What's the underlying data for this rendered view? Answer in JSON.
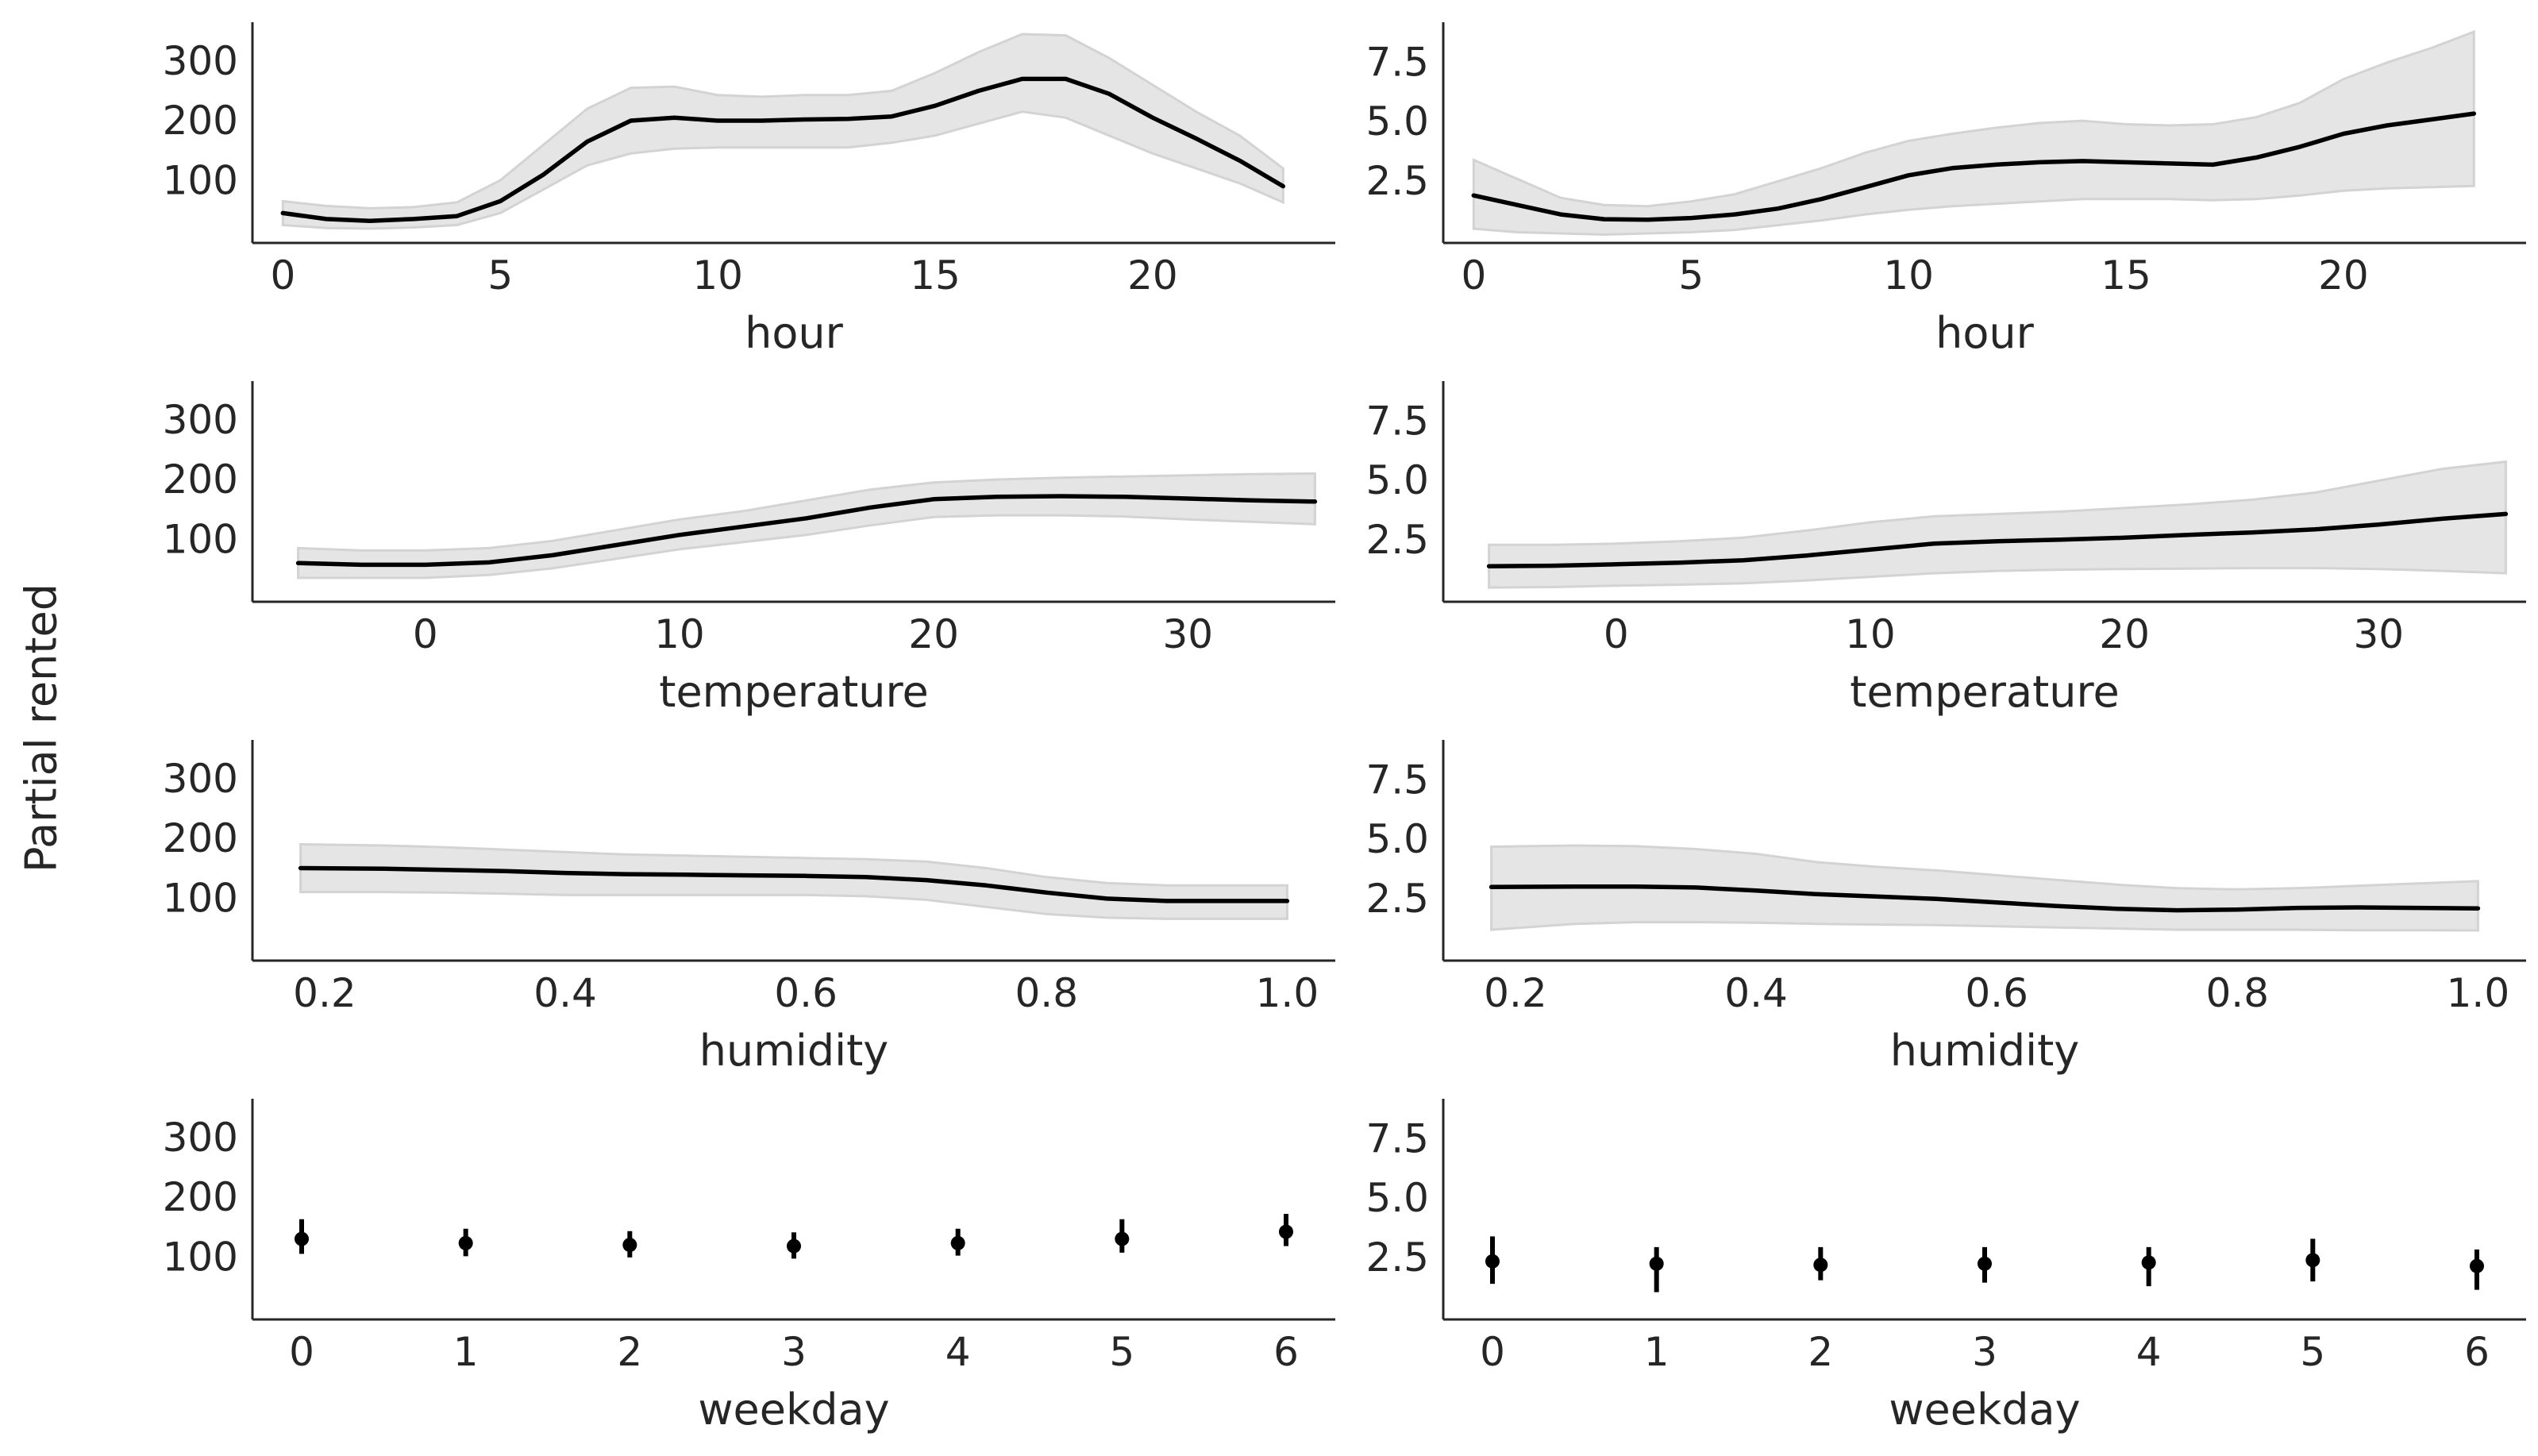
{
  "figure": {
    "ylabel": "Partial rented",
    "band_color": "#e5e5e5",
    "band_edge_color": "#d3d3d3",
    "line_color": "#000000",
    "axis_color": "#262626"
  },
  "chart_data": [
    {
      "type": "line",
      "xlabel": "hour",
      "xlim": [
        -0.7,
        24.2
      ],
      "ylim": [
        0,
        370
      ],
      "xticks": [
        0,
        5,
        10,
        15,
        20
      ],
      "xtick_labels": [
        "0",
        "5",
        "10",
        "15",
        "20"
      ],
      "yticks": [
        100,
        200,
        300
      ],
      "ytick_labels": [
        "100",
        "200",
        "300"
      ],
      "x": [
        0,
        1,
        2,
        3,
        4,
        5,
        6,
        7,
        8,
        9,
        10,
        11,
        12,
        13,
        14,
        15,
        16,
        17,
        18,
        19,
        20,
        21,
        22,
        23
      ],
      "y": [
        50,
        40,
        37,
        40,
        45,
        70,
        115,
        170,
        205,
        210,
        205,
        205,
        207,
        208,
        212,
        230,
        255,
        275,
        275,
        250,
        210,
        175,
        138,
        95
      ],
      "lower": [
        30,
        25,
        24,
        26,
        30,
        50,
        90,
        130,
        150,
        158,
        160,
        160,
        160,
        160,
        168,
        180,
        200,
        220,
        210,
        180,
        150,
        125,
        100,
        68
      ],
      "upper": [
        70,
        62,
        58,
        60,
        68,
        105,
        165,
        225,
        260,
        262,
        248,
        245,
        248,
        248,
        255,
        285,
        320,
        350,
        348,
        310,
        265,
        220,
        180,
        125
      ]
    },
    {
      "type": "line",
      "xlabel": "hour",
      "xlim": [
        -0.7,
        24.2
      ],
      "ylim": [
        0,
        9.3
      ],
      "xticks": [
        0,
        5,
        10,
        15,
        20
      ],
      "xtick_labels": [
        "0",
        "5",
        "10",
        "15",
        "20"
      ],
      "yticks": [
        2.5,
        5.0,
        7.5
      ],
      "ytick_labels": [
        "2.5",
        "5.0",
        "7.5"
      ],
      "x": [
        0,
        1,
        2,
        3,
        4,
        5,
        6,
        7,
        8,
        9,
        10,
        11,
        12,
        13,
        14,
        15,
        16,
        17,
        18,
        19,
        20,
        21,
        22,
        23
      ],
      "y": [
        2.0,
        1.6,
        1.2,
        1.0,
        0.98,
        1.05,
        1.2,
        1.45,
        1.85,
        2.35,
        2.85,
        3.15,
        3.3,
        3.4,
        3.45,
        3.4,
        3.35,
        3.3,
        3.6,
        4.05,
        4.6,
        4.95,
        5.2,
        5.45
      ],
      "lower": [
        0.6,
        0.45,
        0.4,
        0.35,
        0.4,
        0.45,
        0.55,
        0.75,
        0.95,
        1.2,
        1.4,
        1.55,
        1.65,
        1.75,
        1.85,
        1.85,
        1.85,
        1.8,
        1.85,
        2.0,
        2.2,
        2.3,
        2.35,
        2.4
      ],
      "upper": [
        3.5,
        2.7,
        1.9,
        1.6,
        1.55,
        1.75,
        2.05,
        2.6,
        3.15,
        3.8,
        4.3,
        4.6,
        4.85,
        5.05,
        5.15,
        5.0,
        4.95,
        5.0,
        5.3,
        5.9,
        6.9,
        7.6,
        8.2,
        8.9
      ]
    },
    {
      "type": "line",
      "xlabel": "temperature",
      "xlim": [
        -6.8,
        35.8
      ],
      "ylim": [
        0,
        370
      ],
      "xticks": [
        0,
        10,
        20,
        30
      ],
      "xtick_labels": [
        "0",
        "10",
        "20",
        "30"
      ],
      "yticks": [
        100,
        200,
        300
      ],
      "ytick_labels": [
        "100",
        "200",
        "300"
      ],
      "x": [
        -5,
        -2.5,
        0,
        2.5,
        5,
        7.5,
        10,
        12.5,
        15,
        17.5,
        20,
        22.5,
        25,
        27.5,
        30,
        32.5,
        35
      ],
      "y": [
        65,
        62,
        62,
        66,
        78,
        95,
        112,
        126,
        140,
        158,
        172,
        176,
        177,
        176,
        173,
        170,
        168
      ],
      "lower": [
        40,
        40,
        40,
        45,
        56,
        72,
        88,
        100,
        112,
        128,
        142,
        145,
        145,
        143,
        138,
        134,
        130
      ],
      "upper": [
        90,
        86,
        86,
        90,
        102,
        120,
        138,
        152,
        170,
        188,
        200,
        205,
        208,
        210,
        212,
        214,
        215
      ]
    },
    {
      "type": "line",
      "xlabel": "temperature",
      "xlim": [
        -6.8,
        35.8
      ],
      "ylim": [
        0,
        9.3
      ],
      "xticks": [
        0,
        10,
        20,
        30
      ],
      "xtick_labels": [
        "0",
        "10",
        "20",
        "30"
      ],
      "yticks": [
        2.5,
        5.0,
        7.5
      ],
      "ytick_labels": [
        "2.5",
        "5.0",
        "7.5"
      ],
      "x": [
        -5,
        -2.5,
        0,
        2.5,
        5,
        7.5,
        10,
        12.5,
        15,
        17.5,
        20,
        22.5,
        25,
        27.5,
        30,
        32.5,
        35
      ],
      "y": [
        1.5,
        1.52,
        1.58,
        1.65,
        1.75,
        1.95,
        2.2,
        2.45,
        2.55,
        2.62,
        2.7,
        2.82,
        2.92,
        3.05,
        3.25,
        3.5,
        3.7
      ],
      "lower": [
        0.6,
        0.62,
        0.68,
        0.72,
        0.78,
        0.9,
        1.05,
        1.2,
        1.3,
        1.35,
        1.38,
        1.4,
        1.42,
        1.42,
        1.38,
        1.3,
        1.2
      ],
      "upper": [
        2.4,
        2.4,
        2.45,
        2.55,
        2.7,
        3.0,
        3.35,
        3.6,
        3.7,
        3.8,
        3.95,
        4.1,
        4.3,
        4.6,
        5.1,
        5.6,
        5.9
      ]
    },
    {
      "type": "line",
      "xlabel": "humidity",
      "xlim": [
        0.14,
        1.04
      ],
      "ylim": [
        0,
        370
      ],
      "xticks": [
        0.2,
        0.4,
        0.6,
        0.8,
        1.0
      ],
      "xtick_labels": [
        "0.2",
        "0.4",
        "0.6",
        "0.8",
        "1.0"
      ],
      "yticks": [
        100,
        200,
        300
      ],
      "ytick_labels": [
        "100",
        "200",
        "300"
      ],
      "x": [
        0.18,
        0.25,
        0.3,
        0.35,
        0.4,
        0.45,
        0.5,
        0.55,
        0.6,
        0.65,
        0.7,
        0.75,
        0.8,
        0.85,
        0.9,
        0.95,
        1.0
      ],
      "y": [
        155,
        154,
        152,
        150,
        147,
        145,
        144,
        143,
        142,
        140,
        135,
        126,
        114,
        104,
        100,
        100,
        100
      ],
      "lower": [
        115,
        115,
        114,
        112,
        110,
        110,
        110,
        110,
        110,
        108,
        102,
        90,
        78,
        72,
        70,
        70,
        70
      ],
      "upper": [
        195,
        193,
        190,
        186,
        182,
        178,
        176,
        174,
        172,
        170,
        166,
        155,
        140,
        130,
        126,
        126,
        126
      ]
    },
    {
      "type": "line",
      "xlabel": "humidity",
      "xlim": [
        0.14,
        1.04
      ],
      "ylim": [
        0,
        9.3
      ],
      "xticks": [
        0.2,
        0.4,
        0.6,
        0.8,
        1.0
      ],
      "xtick_labels": [
        "0.2",
        "0.4",
        "0.6",
        "0.8",
        "1.0"
      ],
      "yticks": [
        2.5,
        5.0,
        7.5
      ],
      "ytick_labels": [
        "2.5",
        "5.0",
        "7.5"
      ],
      "x": [
        0.18,
        0.25,
        0.3,
        0.35,
        0.4,
        0.45,
        0.5,
        0.55,
        0.6,
        0.65,
        0.7,
        0.75,
        0.8,
        0.85,
        0.9,
        0.95,
        1.0
      ],
      "y": [
        3.1,
        3.12,
        3.12,
        3.08,
        2.95,
        2.8,
        2.7,
        2.6,
        2.45,
        2.3,
        2.18,
        2.12,
        2.15,
        2.22,
        2.24,
        2.22,
        2.2
      ],
      "lower": [
        1.3,
        1.55,
        1.62,
        1.62,
        1.6,
        1.55,
        1.52,
        1.5,
        1.45,
        1.4,
        1.35,
        1.3,
        1.3,
        1.3,
        1.28,
        1.28,
        1.27
      ],
      "upper": [
        4.8,
        4.85,
        4.82,
        4.7,
        4.5,
        4.15,
        3.95,
        3.8,
        3.6,
        3.4,
        3.2,
        3.05,
        3.0,
        3.05,
        3.15,
        3.25,
        3.35
      ]
    },
    {
      "type": "scatter",
      "xlabel": "weekday",
      "xlim": [
        -0.3,
        6.3
      ],
      "ylim": [
        0,
        370
      ],
      "xticks": [
        0,
        1,
        2,
        3,
        4,
        5,
        6
      ],
      "xtick_labels": [
        "0",
        "1",
        "2",
        "3",
        "4",
        "5",
        "6"
      ],
      "yticks": [
        100,
        200,
        300
      ],
      "ytick_labels": [
        "100",
        "200",
        "300"
      ],
      "x": [
        0,
        1,
        2,
        3,
        4,
        5,
        6
      ],
      "y": [
        135,
        128,
        125,
        123,
        128,
        135,
        147
      ],
      "lower": [
        110,
        106,
        104,
        102,
        107,
        112,
        123
      ],
      "upper": [
        168,
        152,
        148,
        146,
        152,
        168,
        177
      ]
    },
    {
      "type": "scatter",
      "xlabel": "weekday",
      "xlim": [
        -0.3,
        6.3
      ],
      "ylim": [
        0,
        9.3
      ],
      "xticks": [
        0,
        1,
        2,
        3,
        4,
        5,
        6
      ],
      "xtick_labels": [
        "0",
        "1",
        "2",
        "3",
        "4",
        "5",
        "6"
      ],
      "yticks": [
        2.5,
        5.0,
        7.5
      ],
      "ytick_labels": [
        "2.5",
        "5.0",
        "7.5"
      ],
      "x": [
        0,
        1,
        2,
        3,
        4,
        5,
        6
      ],
      "y": [
        2.45,
        2.35,
        2.3,
        2.35,
        2.4,
        2.5,
        2.25
      ],
      "lower": [
        1.5,
        1.15,
        1.65,
        1.55,
        1.4,
        1.6,
        1.25
      ],
      "upper": [
        3.5,
        3.05,
        3.05,
        3.05,
        3.05,
        3.4,
        2.95
      ]
    }
  ]
}
